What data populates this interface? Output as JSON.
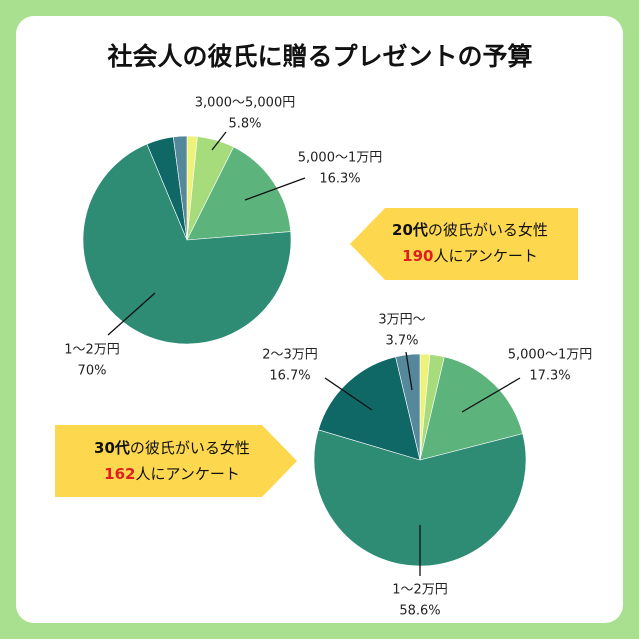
{
  "title": "社会人の彼氏に贈るプレゼントの予算",
  "chart_data": [
    {
      "type": "pie",
      "categories": [
        null,
        "3,000〜5,000円",
        "5,000〜1万円",
        "1〜2万円",
        null,
        null
      ],
      "values": [
        1.6,
        5.8,
        16.3,
        70,
        4.2,
        2.1
      ],
      "value_labels": [
        null,
        "5.8%",
        "16.3%",
        "70%",
        null,
        null
      ],
      "colors": [
        "#eef27a",
        "#a6dc7c",
        "#5db37c",
        "#2e8b74",
        "#0f6866",
        "#56889b"
      ],
      "callout": {
        "group": "20代",
        "group_rest": "の彼氏がいる女性",
        "count": "190",
        "count_rest": "人にアンケート"
      }
    },
    {
      "type": "pie",
      "categories": [
        null,
        null,
        "5,000〜1万円",
        "1〜2万円",
        "2〜3万円",
        "3万円〜"
      ],
      "values": [
        1.5,
        2.2,
        17.3,
        58.6,
        16.7,
        3.7
      ],
      "value_labels": [
        null,
        null,
        "17.3%",
        "58.6%",
        "16.7%",
        "3.7%"
      ],
      "colors": [
        "#eef27a",
        "#a6dc7c",
        "#5db37c",
        "#2e8b74",
        "#0f6866",
        "#56889b"
      ],
      "callout": {
        "group": "30代",
        "group_rest": "の彼氏がいる女性",
        "count": "162",
        "count_rest": "人にアンケート"
      }
    }
  ]
}
